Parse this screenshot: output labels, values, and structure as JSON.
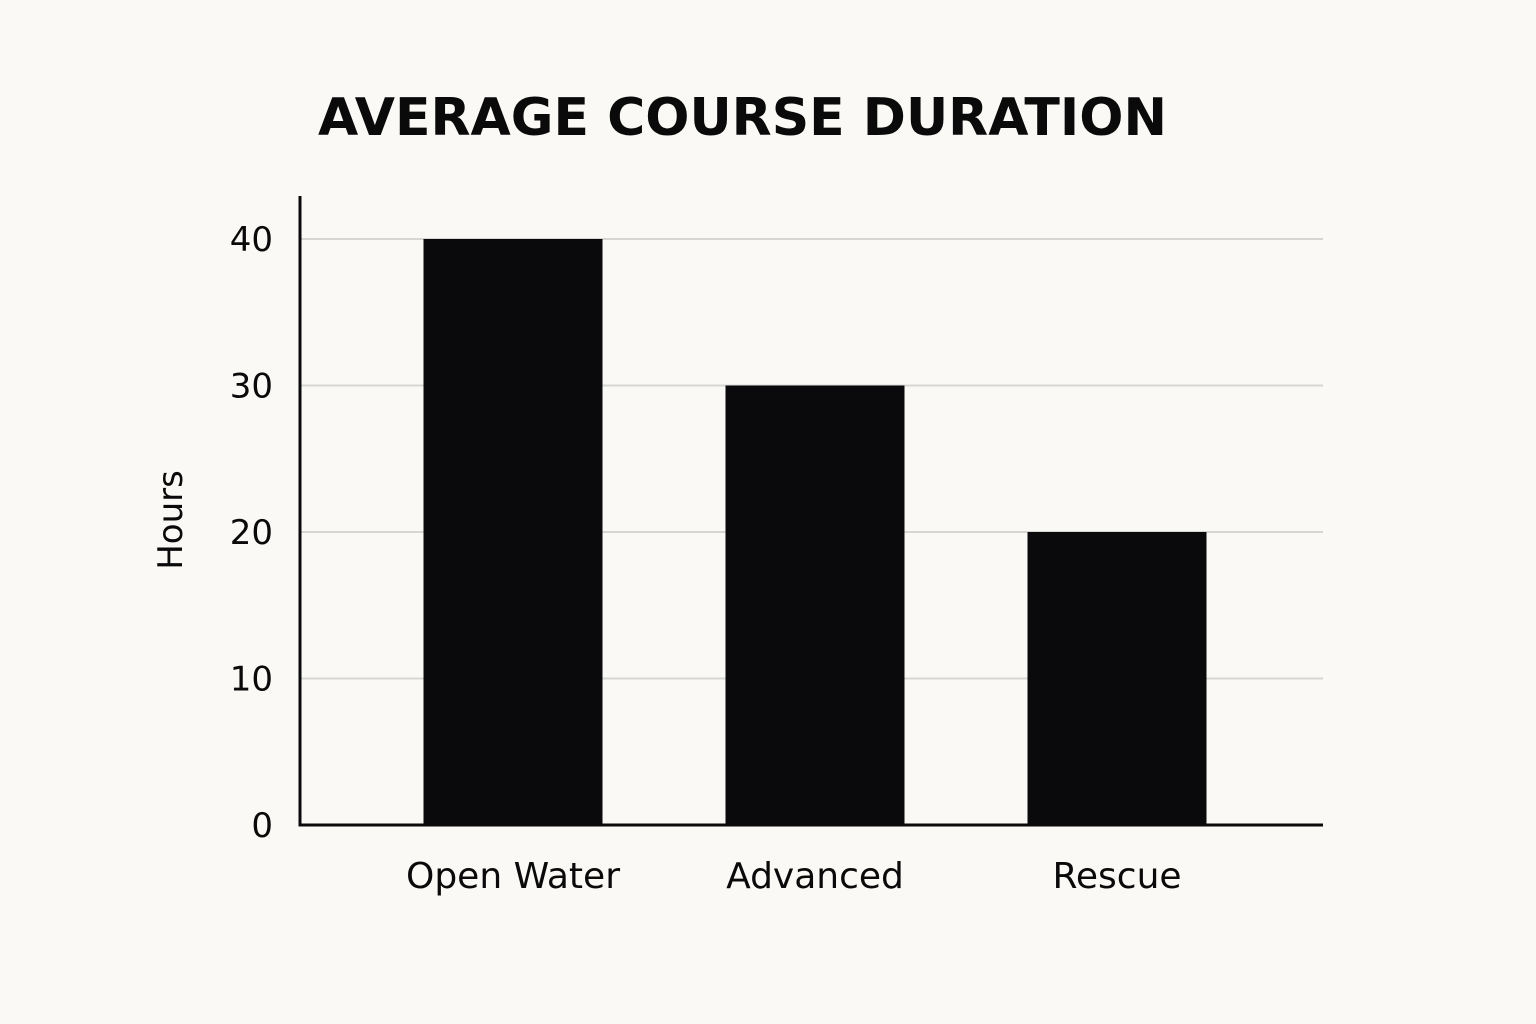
{
  "chart_data": {
    "type": "bar",
    "title": "AVERAGE COURSE DURATION",
    "xlabel": "",
    "ylabel": "Hours",
    "categories": [
      "Open Water",
      "Advanced",
      "Rescue"
    ],
    "values": [
      40,
      30,
      20
    ],
    "ylim": [
      0,
      40
    ],
    "yticks": [
      0,
      10,
      20,
      30,
      40
    ],
    "grid": true,
    "legend": "none",
    "bar_color": "#0a0a0c",
    "grid_color": "#d6d6d3",
    "background": "#faf9f5"
  }
}
